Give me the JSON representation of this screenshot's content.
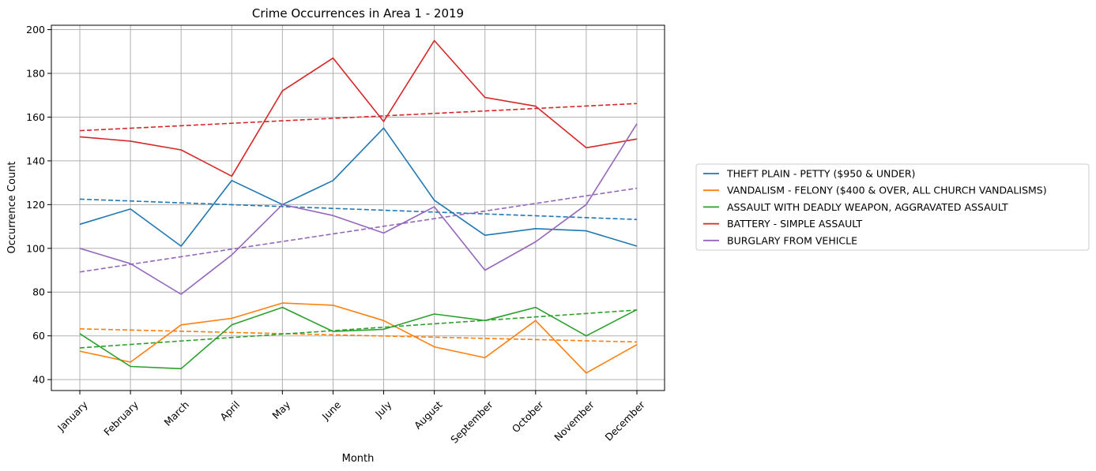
{
  "chart_data": {
    "type": "line",
    "title": "Crime Occurrences in Area 1 - 2019",
    "xlabel": "Month",
    "ylabel": "Occurrence Count",
    "categories": [
      "January",
      "February",
      "March",
      "April",
      "May",
      "June",
      "July",
      "August",
      "September",
      "October",
      "November",
      "December"
    ],
    "ylim": [
      35,
      202
    ],
    "yticks": [
      40,
      60,
      80,
      100,
      120,
      140,
      160,
      180,
      200
    ],
    "grid": true,
    "legend_position": "right",
    "series": [
      {
        "name": "THEFT PLAIN - PETTY ($950 & UNDER)",
        "color": "#1f77b4",
        "values": [
          111,
          118,
          101,
          131,
          120,
          131,
          155,
          122,
          106,
          109,
          108,
          101
        ],
        "trend": [
          122.5,
          113.2
        ]
      },
      {
        "name": "VANDALISM - FELONY ($400 & OVER, ALL CHURCH VANDALISMS)",
        "color": "#ff7f0e",
        "values": [
          53,
          48,
          65,
          68,
          75,
          74,
          67,
          55,
          50,
          67,
          43,
          56
        ],
        "trend": [
          63.2,
          57.2
        ]
      },
      {
        "name": "ASSAULT WITH DEADLY WEAPON, AGGRAVATED ASSAULT",
        "color": "#2ca02c",
        "values": [
          61,
          46,
          45,
          65,
          73,
          62,
          63,
          70,
          67,
          73,
          60,
          72
        ],
        "trend": [
          54.5,
          71.8
        ]
      },
      {
        "name": "BATTERY - SIMPLE ASSAULT",
        "color": "#d62728",
        "values": [
          151,
          149,
          145,
          133,
          172,
          187,
          158,
          195,
          169,
          165,
          146,
          150
        ],
        "trend": [
          153.8,
          166.2
        ]
      },
      {
        "name": "BURGLARY FROM VEHICLE",
        "color": "#9467bd",
        "values": [
          100,
          93,
          79,
          97,
          120,
          115,
          107,
          119,
          90,
          103,
          120,
          157
        ],
        "trend": [
          89.2,
          127.5
        ]
      }
    ]
  }
}
